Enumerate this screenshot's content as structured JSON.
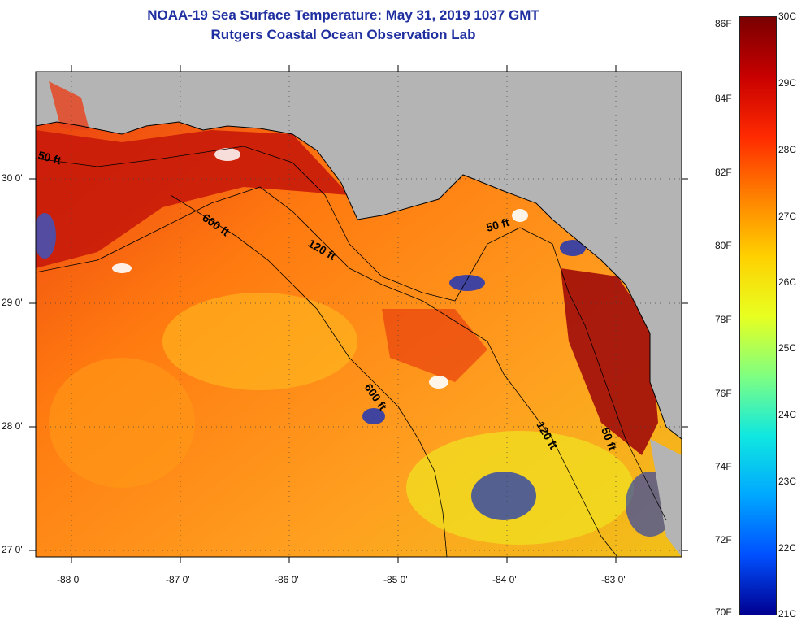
{
  "title_line1": "NOAA-19 Sea Surface Temperature:  May 31, 2019 1037 GMT",
  "title_line2": "Rutgers Coastal Ocean Observation Lab",
  "lat_labels": [
    "30 0'",
    "29 0'",
    "28 0'",
    "27 0'"
  ],
  "lon_labels": [
    "-88 0'",
    "-87 0'",
    "-86 0'",
    "-85 0'",
    "-84 0'",
    "-83 0'"
  ],
  "contour_labels": [
    "50 ft",
    "600 ft",
    "120 ft",
    "50 ft",
    "600 ft",
    "120 ft",
    "50 ft"
  ],
  "colorbar": {
    "fahrenheit": [
      "86F",
      "84F",
      "82F",
      "80F",
      "78F",
      "76F",
      "74F",
      "72F",
      "70F"
    ],
    "celsius": [
      "30C",
      "29C",
      "28C",
      "27C",
      "26C",
      "25C",
      "24C",
      "23C",
      "22C",
      "21C"
    ]
  },
  "colors": {
    "land": "#b4b4b4",
    "title": "#1f2fa0",
    "warm": "#d01a0a",
    "hot": "#9c0a0a",
    "mid": "#ff7a10",
    "cool": "#f0c018"
  }
}
